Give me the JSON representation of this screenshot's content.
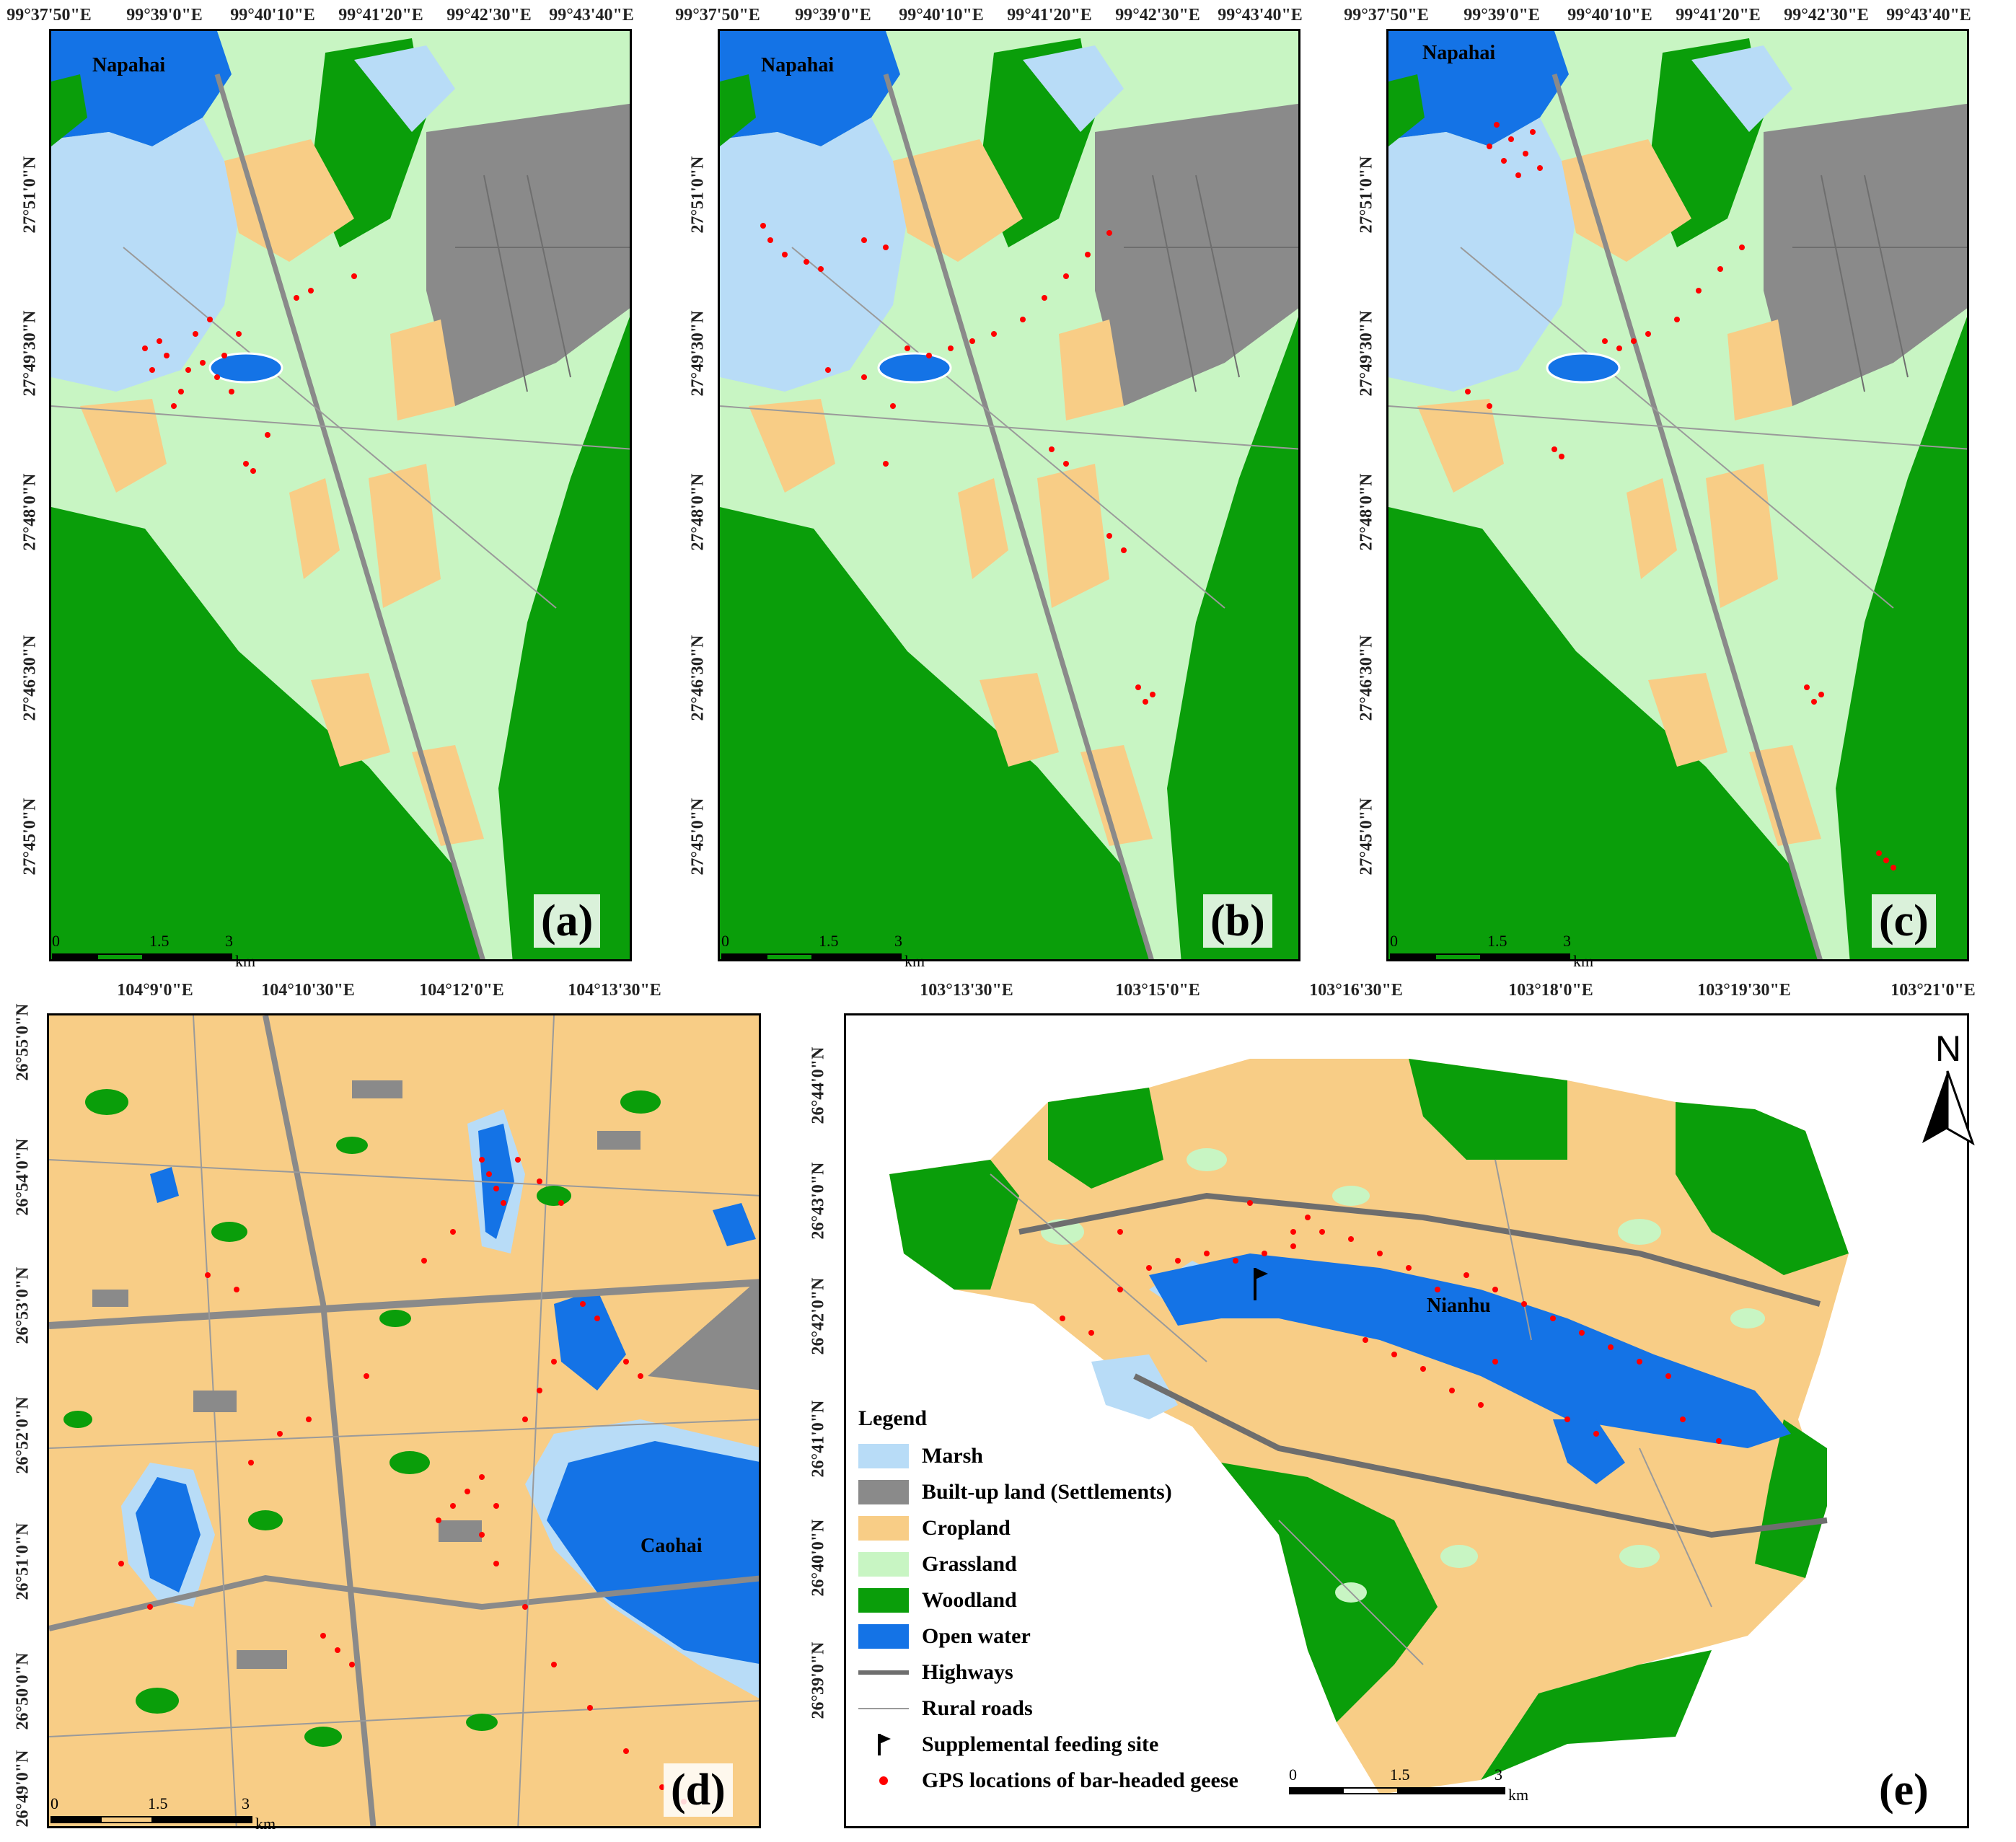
{
  "colors": {
    "marsh": "#b8dcf7",
    "builtup": "#8a8a8a",
    "cropland": "#f8cd86",
    "grassland": "#c8f5c3",
    "woodland": "#0a9e0a",
    "openwater": "#1473e6",
    "gps": "#ff0000"
  },
  "panels": {
    "a": {
      "label": "(a)",
      "place": "Napahai",
      "top_ticks": [
        "99°37'50\"E",
        "99°39'0\"E",
        "99°40'10\"E",
        "99°41'20\"E",
        "99°42'30\"E",
        "99°43'40\"E"
      ],
      "left_ticks": [
        "27°51'0\"N",
        "27°49'30\"N",
        "27°48'0\"N",
        "27°46'30\"N",
        "27°45'0\"N"
      ],
      "scale": {
        "ticks": [
          "0",
          "1.5",
          "3"
        ],
        "unit": "km"
      }
    },
    "b": {
      "label": "(b)",
      "place": "Napahai",
      "top_ticks": [
        "99°37'50\"E",
        "99°39'0\"E",
        "99°40'10\"E",
        "99°41'20\"E",
        "99°42'30\"E",
        "99°43'40\"E"
      ],
      "left_ticks": [
        "27°51'0\"N",
        "27°49'30\"N",
        "27°48'0\"N",
        "27°46'30\"N",
        "27°45'0\"N"
      ],
      "scale": {
        "ticks": [
          "0",
          "1.5",
          "3"
        ],
        "unit": "km"
      }
    },
    "c": {
      "label": "(c)",
      "place": "Napahai",
      "top_ticks": [
        "99°37'50\"E",
        "99°39'0\"E",
        "99°40'10\"E",
        "99°41'20\"E",
        "99°42'30\"E",
        "99°43'40\"E"
      ],
      "left_ticks": [
        "27°51'0\"N",
        "27°49'30\"N",
        "27°48'0\"N",
        "27°46'30\"N",
        "27°45'0\"N"
      ],
      "scale": {
        "ticks": [
          "0",
          "1.5",
          "3"
        ],
        "unit": "km"
      }
    },
    "d": {
      "label": "(d)",
      "place": "Caohai",
      "top_ticks": [
        "104°9'0\"E",
        "104°10'30\"E",
        "104°12'0\"E",
        "104°13'30\"E"
      ],
      "left_ticks": [
        "26°55'0\"N",
        "26°54'0\"N",
        "26°53'0\"N",
        "26°52'0\"N",
        "26°51'0\"N",
        "26°50'0\"N",
        "26°49'0\"N"
      ],
      "scale": {
        "ticks": [
          "0",
          "1.5",
          "3"
        ],
        "unit": "km"
      }
    },
    "e": {
      "label": "(e)",
      "place": "Nianhu",
      "north": "N",
      "top_ticks": [
        "103°13'30\"E",
        "103°15'0\"E",
        "103°16'30\"E",
        "103°18'0\"E",
        "103°19'30\"E",
        "103°21'0\"E"
      ],
      "left_ticks": [
        "26°44'0\"N",
        "26°43'0\"N",
        "26°42'0\"N",
        "26°41'0\"N",
        "26°40'0\"N",
        "26°39'0\"N"
      ],
      "scale": {
        "ticks": [
          "0",
          "1.5",
          "3"
        ],
        "unit": "km"
      }
    }
  },
  "legend": {
    "title": "Legend",
    "items": [
      {
        "label": "Marsh",
        "kind": "swatch",
        "color": "#b8dcf7"
      },
      {
        "label": "Built-up land (Settlements)",
        "kind": "swatch",
        "color": "#8a8a8a"
      },
      {
        "label": "Cropland",
        "kind": "swatch",
        "color": "#f8cd86"
      },
      {
        "label": "Grassland",
        "kind": "swatch",
        "color": "#c8f5c3"
      },
      {
        "label": "Woodland",
        "kind": "swatch",
        "color": "#0a9e0a"
      },
      {
        "label": "Open water",
        "kind": "swatch",
        "color": "#1473e6"
      },
      {
        "label": "Highways",
        "kind": "thick-line",
        "color": "#6e6e6e"
      },
      {
        "label": "Rural roads",
        "kind": "thin-line",
        "color": "#9a9a9a"
      },
      {
        "label": "Supplemental feeding site",
        "kind": "flag",
        "color": "#000000"
      },
      {
        "label": "GPS locations of bar-headed geese",
        "kind": "dot",
        "color": "#ff0000"
      }
    ]
  }
}
